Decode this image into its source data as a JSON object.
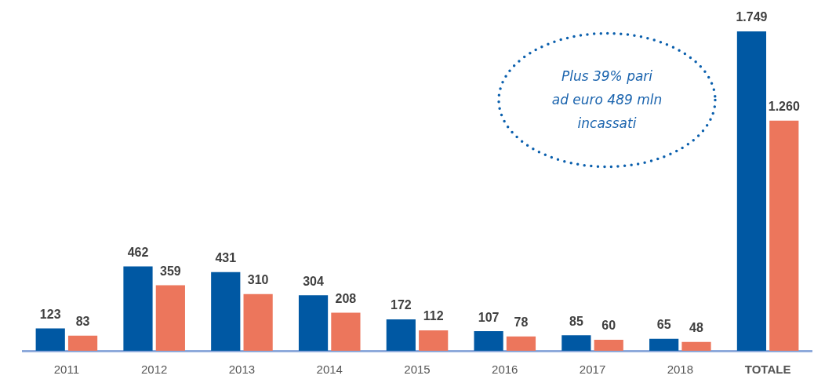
{
  "chart_data": {
    "type": "bar",
    "categories": [
      "2011",
      "2012",
      "2013",
      "2014",
      "2015",
      "2016",
      "2017",
      "2018",
      "TOTALE"
    ],
    "series": [
      {
        "color": "#0058a3",
        "values": [
          123,
          462,
          431,
          304,
          172,
          107,
          85,
          65,
          1749
        ],
        "value_labels": [
          "123",
          "462",
          "431",
          "304",
          "172",
          "107",
          "85",
          "65",
          "1.749"
        ]
      },
      {
        "color": "#ec765c",
        "values": [
          83,
          359,
          310,
          208,
          112,
          78,
          60,
          48,
          1260
        ],
        "value_labels": [
          "83",
          "359",
          "310",
          "208",
          "112",
          "78",
          "60",
          "48",
          "1.260"
        ]
      }
    ],
    "grid": false,
    "legend": false,
    "tick_labels": "x",
    "annotations": [
      "Plus 39% pari\nad euro 489 mln\nincassati"
    ]
  }
}
